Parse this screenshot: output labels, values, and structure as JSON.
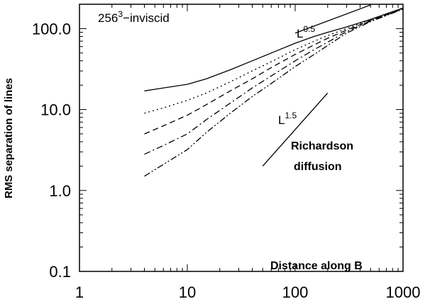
{
  "chart_data": {
    "type": "line",
    "title_base": "256",
    "title_sup": "3",
    "title_rest": "−inviscid",
    "xlabel": "Distance along B",
    "ylabel": "RMS separation of lines",
    "xscale": "log",
    "yscale": "log",
    "xlim": [
      1,
      1000
    ],
    "ylim": [
      0.1,
      200
    ],
    "x_tick_values": [
      1,
      10,
      100,
      1000
    ],
    "x_ticks": [
      "1",
      "10",
      "100",
      "1000"
    ],
    "y_tick_values": [
      0.1,
      1.0,
      10.0,
      100.0
    ],
    "y_ticks": [
      "0.1",
      "1.0",
      "10.0",
      "100.0"
    ],
    "grid": false,
    "series": [
      {
        "style": "solid",
        "x": [
          4,
          6,
          10,
          15,
          25,
          40,
          60,
          100,
          150,
          200,
          300,
          500,
          1000
        ],
        "y": [
          17,
          18.5,
          20.5,
          24,
          31,
          40,
          50,
          66,
          80,
          90,
          105,
          130,
          180
        ]
      },
      {
        "style": "dotted",
        "x": [
          4,
          6,
          10,
          15,
          25,
          40,
          60,
          100,
          150,
          200,
          300,
          500,
          1000
        ],
        "y": [
          9,
          10.5,
          13,
          16,
          22,
          30,
          39,
          55,
          70,
          82,
          100,
          128,
          178
        ]
      },
      {
        "style": "dashed",
        "x": [
          4,
          6,
          10,
          15,
          25,
          40,
          60,
          100,
          150,
          200,
          300,
          500,
          1000
        ],
        "y": [
          5,
          6.3,
          8.5,
          11.5,
          17,
          24,
          33,
          48,
          63,
          76,
          96,
          126,
          176
        ]
      },
      {
        "style": "dash-dot",
        "x": [
          4,
          6,
          10,
          15,
          25,
          40,
          60,
          100,
          150,
          200,
          300,
          500,
          1000
        ],
        "y": [
          2.8,
          3.6,
          5,
          7.5,
          12,
          18.5,
          26,
          40,
          55,
          68,
          92,
          124,
          175
        ]
      },
      {
        "style": "dash-dot-dot",
        "x": [
          4,
          6,
          10,
          15,
          25,
          40,
          60,
          100,
          150,
          200,
          300,
          500,
          1000
        ],
        "y": [
          1.5,
          2.1,
          3.2,
          5.2,
          9,
          14.5,
          21,
          34,
          48,
          62,
          88,
          122,
          174
        ]
      }
    ],
    "reference_lines": [
      {
        "label_base": "L",
        "label_exp": "0.5",
        "x": [
          100,
          500
        ],
        "y": [
          88,
          196
        ]
      },
      {
        "label_base": "L",
        "label_exp": "1.5",
        "x": [
          50,
          200
        ],
        "y": [
          2.0,
          16
        ]
      }
    ],
    "annotations": {
      "richardson_line1": "Richardson",
      "richardson_line2": "diffusion"
    }
  }
}
